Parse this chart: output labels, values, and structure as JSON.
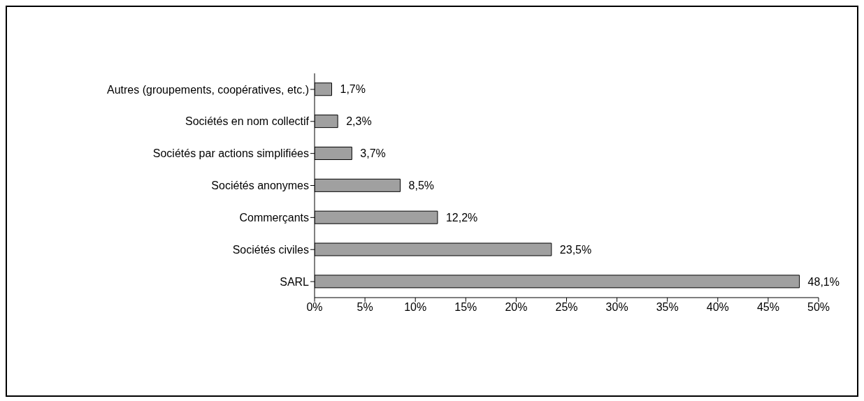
{
  "chart_data": {
    "type": "bar",
    "orientation": "horizontal",
    "categories": [
      "Autres (groupements, coopératives, etc.)",
      "Sociétés en nom collectif",
      "Sociétés par actions simplifiées",
      "Sociétés anonymes",
      "Commerçants",
      "Sociétés civiles",
      "SARL"
    ],
    "values": [
      1.7,
      2.3,
      3.7,
      8.5,
      12.2,
      23.5,
      48.1
    ],
    "value_labels": [
      "1,7%",
      "2,3%",
      "3,7%",
      "8,5%",
      "12,2%",
      "23,5%",
      "48,1%"
    ],
    "color": "#a0a0a0",
    "xlim": [
      0,
      50
    ],
    "xticks": [
      {
        "value": 0,
        "label": "0%"
      },
      {
        "value": 5,
        "label": "5%"
      },
      {
        "value": 10,
        "label": "10%"
      },
      {
        "value": 15,
        "label": "15%"
      },
      {
        "value": 20,
        "label": "20%"
      },
      {
        "value": 25,
        "label": "25%"
      },
      {
        "value": 30,
        "label": "30%"
      },
      {
        "value": 35,
        "label": "35%"
      },
      {
        "value": 40,
        "label": "40%"
      },
      {
        "value": 45,
        "label": "45%"
      },
      {
        "value": 50,
        "label": "50%"
      }
    ],
    "grid": false,
    "legend": false
  }
}
